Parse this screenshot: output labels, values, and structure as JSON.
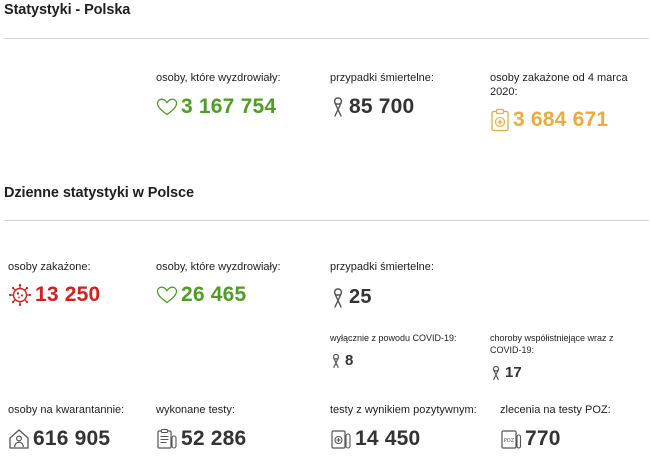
{
  "section1": {
    "title": "Statystyki - Polska",
    "recovered": {
      "label": "osoby, które wyzdrowiały:",
      "value": "3 167 754",
      "icon": "heart-icon",
      "color": "#4f9d26"
    },
    "deaths": {
      "label": "przypadki śmiertelne:",
      "value": "85 700",
      "icon": "ribbon-icon",
      "color": "#333333"
    },
    "infected_total": {
      "label": "osoby zakażone od 4 marca 2020:",
      "value": "3 684 671",
      "icon": "clipboard-medical-icon",
      "color": "#ecab3a"
    }
  },
  "section2": {
    "title": "Dzienne statystyki w Polsce",
    "infected": {
      "label": "osoby zakażone:",
      "value": "13 250",
      "icon": "virus-icon",
      "color": "#d1201f"
    },
    "recovered": {
      "label": "osoby, które wyzdrowiały:",
      "value": "26 465",
      "icon": "heart-icon",
      "color": "#4f9d26"
    },
    "deaths": {
      "label": "przypadki śmiertelne:",
      "value": "25",
      "icon": "ribbon-icon"
    },
    "deaths_covid_only": {
      "label": "wyłącznie z powodu COVID-19:",
      "value": "8",
      "icon": "ribbon-icon"
    },
    "deaths_comorbid": {
      "label": "choroby współistniejące wraz z COVID-19:",
      "value": "17",
      "icon": "ribbon-icon"
    },
    "quarantine": {
      "label": "osoby na kwarantannie:",
      "value": "616 905",
      "icon": "house-person-icon"
    },
    "tests": {
      "label": "wykonane testy:",
      "value": "52 286",
      "icon": "clipboard-list-icon"
    },
    "positive_tests": {
      "label": "testy z wynikiem pozytywnym:",
      "value": "14 450",
      "icon": "test-tube-icon"
    },
    "poz_orders": {
      "label": "zlecenia na testy POZ:",
      "value": "770",
      "icon": "poz-order-icon",
      "icon_text": "POZ"
    }
  }
}
